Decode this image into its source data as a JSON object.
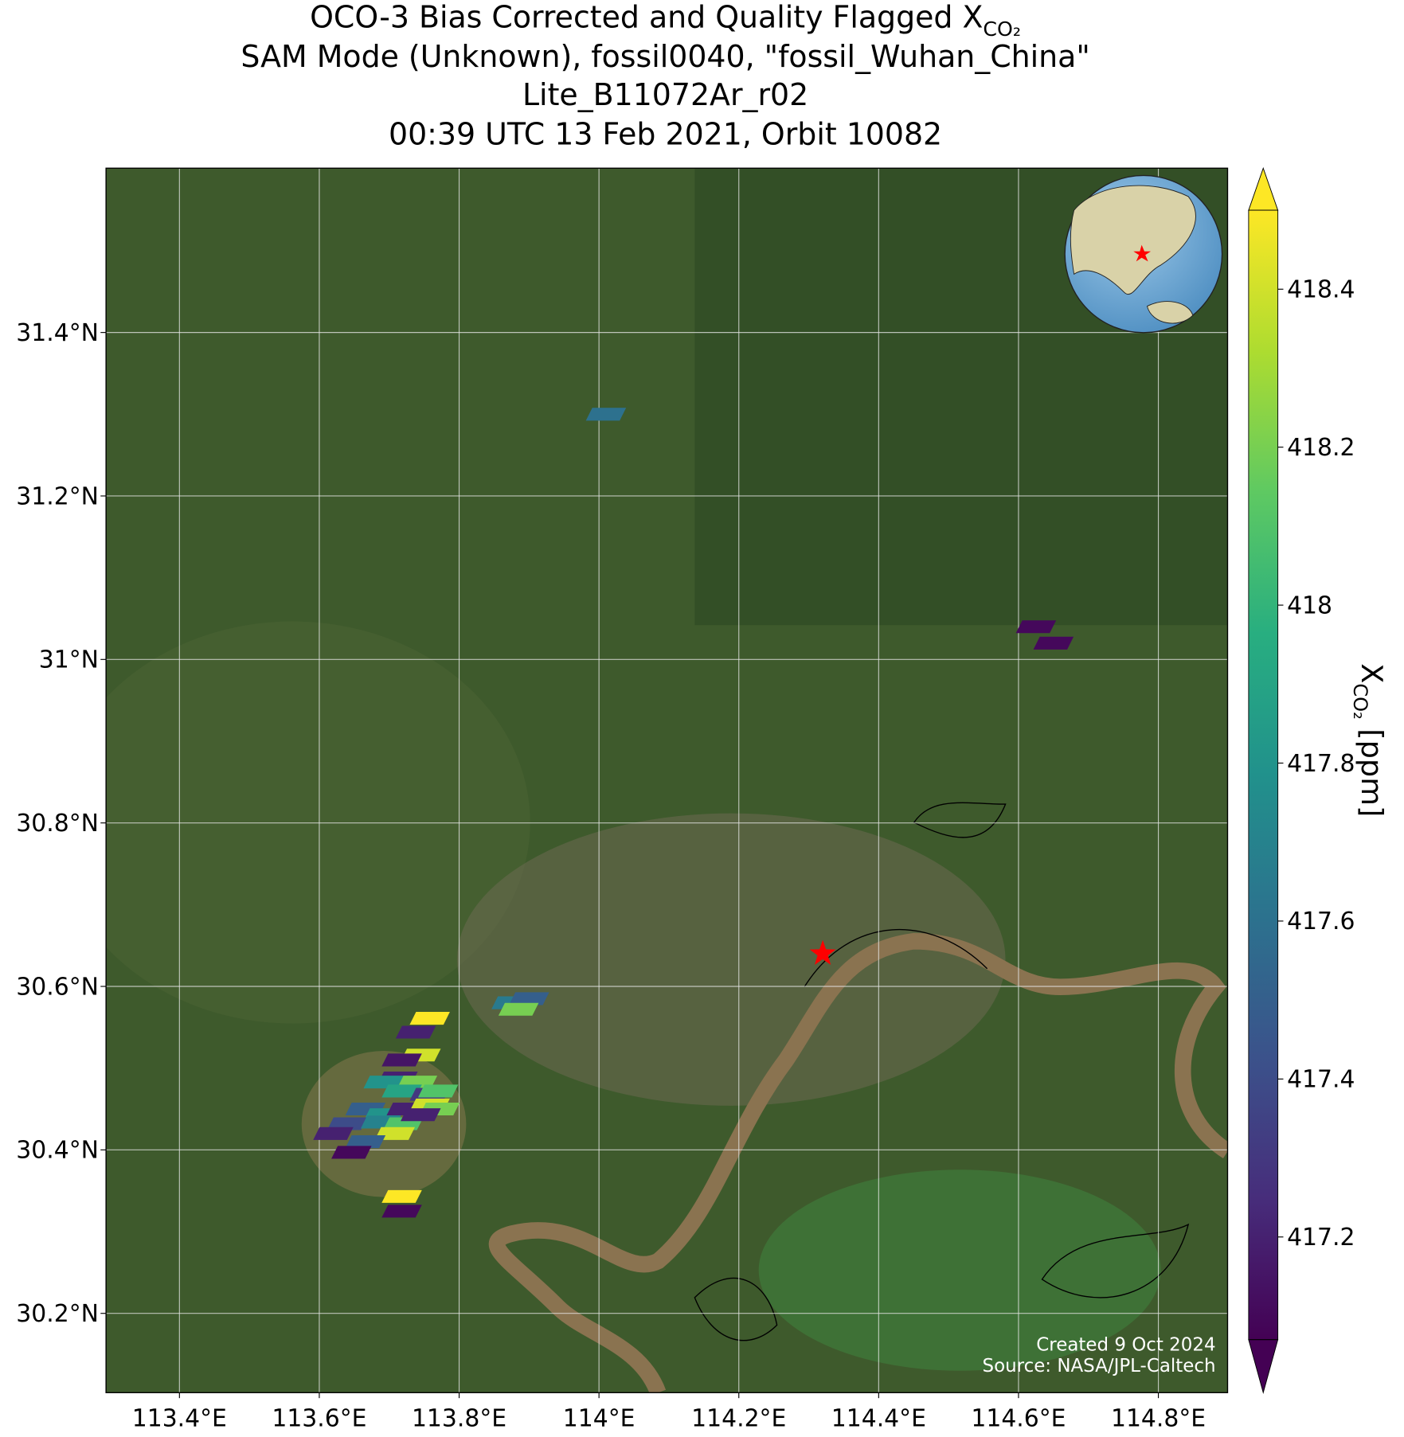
{
  "chart_data": {
    "type": "map",
    "title": [
      "OCO-3 Bias Corrected and Quality Flagged X",
      "SAM Mode (Unknown), fossil0040, \"fossil_Wuhan_China\"",
      "Lite_B11072Ar_r02",
      "00:39 UTC 13 Feb 2021, Orbit 10082"
    ],
    "title_subscript": "CO₂",
    "xlim": [
      113.295,
      114.899
    ],
    "ylim": [
      30.103,
      31.601
    ],
    "xticks": [
      {
        "value": 113.4,
        "label": "113.4°E"
      },
      {
        "value": 113.6,
        "label": "113.6°E"
      },
      {
        "value": 113.8,
        "label": "113.8°E"
      },
      {
        "value": 114.0,
        "label": "114°E"
      },
      {
        "value": 114.2,
        "label": "114.2°E"
      },
      {
        "value": 114.4,
        "label": "114.4°E"
      },
      {
        "value": 114.6,
        "label": "114.6°E"
      },
      {
        "value": 114.8,
        "label": "114.8°E"
      }
    ],
    "yticks": [
      {
        "value": 30.2,
        "label": "30.2°N"
      },
      {
        "value": 30.4,
        "label": "30.4°N"
      },
      {
        "value": 30.6,
        "label": "30.6°N"
      },
      {
        "value": 30.8,
        "label": "30.8°N"
      },
      {
        "value": 31.0,
        "label": "31°N"
      },
      {
        "value": 31.2,
        "label": "31.2°N"
      },
      {
        "value": 31.4,
        "label": "31.4°N"
      }
    ],
    "grid": true,
    "lon": [
      114.01,
      114.625,
      114.65,
      113.875,
      113.9,
      113.885,
      113.758,
      113.738,
      113.745,
      113.718,
      113.712,
      113.692,
      113.74,
      113.718,
      113.758,
      113.77,
      113.666,
      113.692,
      113.725,
      113.758,
      113.772,
      113.64,
      113.688,
      113.72,
      113.745,
      113.62,
      113.708,
      113.666,
      113.646,
      113.718,
      113.718
    ],
    "lat": [
      31.3,
      31.04,
      31.02,
      30.58,
      30.585,
      30.572,
      30.561,
      30.544,
      30.516,
      30.51,
      30.488,
      30.483,
      30.483,
      30.472,
      30.468,
      30.472,
      30.45,
      30.443,
      30.45,
      30.455,
      30.45,
      30.432,
      30.434,
      30.432,
      30.443,
      30.42,
      30.42,
      30.41,
      30.397,
      30.343,
      30.325
    ],
    "values": [
      417.6,
      417.1,
      417.1,
      417.65,
      417.5,
      418.2,
      418.5,
      417.2,
      418.4,
      417.15,
      417.2,
      417.8,
      418.2,
      417.9,
      417.3,
      418.1,
      417.5,
      417.8,
      417.2,
      418.4,
      418.2,
      417.4,
      417.7,
      418.1,
      417.2,
      417.2,
      418.4,
      417.5,
      417.1,
      418.5,
      417.1
    ],
    "site": {
      "lon": 114.32,
      "lat": 30.64,
      "color": "#ff0000"
    },
    "colorbar": {
      "clim": [
        417.07,
        418.5
      ],
      "ticks": [
        417.2,
        417.4,
        417.6,
        417.8,
        418.0,
        418.2,
        418.4
      ],
      "label": "X",
      "label_subscript": "CO₂",
      "label_suffix": "[ppm]",
      "extend": "both"
    },
    "colormap": [
      "#440154",
      "#472d7b",
      "#3b528b",
      "#2c728e",
      "#21918c",
      "#28ae80",
      "#5ec962",
      "#addc30",
      "#fde725"
    ],
    "credits": [
      "Created 9 Oct 2024",
      "Source: NASA/JPL-Caltech"
    ]
  }
}
